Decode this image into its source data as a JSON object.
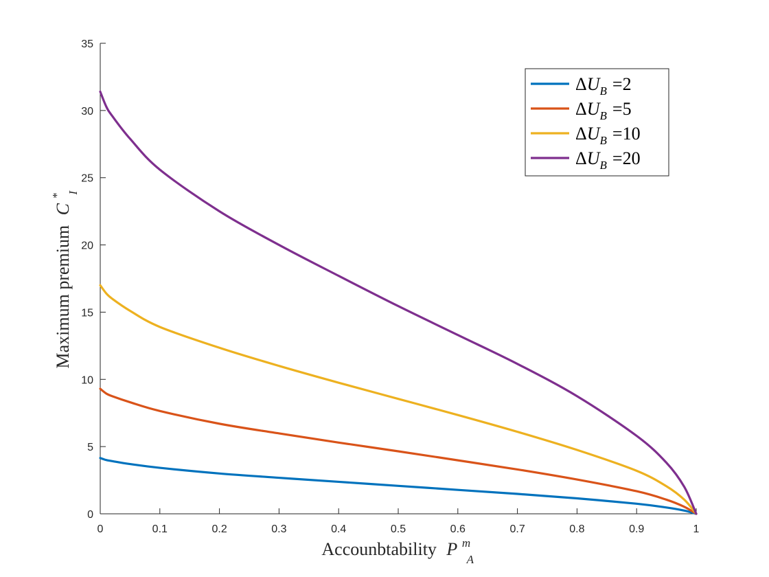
{
  "chart_data": {
    "type": "line",
    "xlabel_prefix": "Accounbtability",
    "xlabel_var": "P",
    "xlabel_sup": "m",
    "xlabel_sub": "A",
    "ylabel_prefix": "Maximum premium",
    "ylabel_var": "C",
    "ylabel_sup": "*",
    "ylabel_sub": "I",
    "xlim": [
      0,
      1
    ],
    "ylim": [
      0,
      35
    ],
    "xticks": [
      0,
      0.1,
      0.2,
      0.3,
      0.4,
      0.5,
      0.6,
      0.7,
      0.8,
      0.9,
      1
    ],
    "xtick_labels": [
      "0",
      "0.1",
      "0.2",
      "0.3",
      "0.4",
      "0.5",
      "0.6",
      "0.7",
      "0.8",
      "0.9",
      "1"
    ],
    "yticks": [
      0,
      5,
      10,
      15,
      20,
      25,
      30,
      35
    ],
    "ytick_labels": [
      "0",
      "5",
      "10",
      "15",
      "20",
      "25",
      "30",
      "35"
    ],
    "grid": false,
    "legend_position": "top-right",
    "x": [
      0,
      0.01,
      0.02,
      0.05,
      0.1,
      0.2,
      0.3,
      0.4,
      0.5,
      0.6,
      0.7,
      0.8,
      0.9,
      0.95,
      0.98,
      1.0
    ],
    "series": [
      {
        "name": "ΔU_B =2",
        "legend_delta": "Δ",
        "legend_var": "U",
        "legend_sub": "B",
        "legend_value": "=2",
        "color": "#0072BD",
        "values": [
          4.15,
          4.0,
          3.92,
          3.7,
          3.42,
          3.0,
          2.68,
          2.38,
          2.08,
          1.78,
          1.48,
          1.15,
          0.75,
          0.47,
          0.24,
          0
        ]
      },
      {
        "name": "ΔU_B =5",
        "legend_delta": "Δ",
        "legend_var": "U",
        "legend_sub": "B",
        "legend_value": "=5",
        "color": "#D95319",
        "values": [
          9.3,
          8.95,
          8.75,
          8.3,
          7.65,
          6.7,
          5.98,
          5.3,
          4.65,
          3.98,
          3.3,
          2.55,
          1.68,
          1.05,
          0.52,
          0
        ]
      },
      {
        "name": "ΔU_B =10",
        "legend_delta": "Δ",
        "legend_var": "U",
        "legend_sub": "B",
        "legend_value": "=10",
        "color": "#EDB120",
        "values": [
          17.0,
          16.4,
          16.0,
          15.1,
          13.9,
          12.35,
          11.0,
          9.75,
          8.55,
          7.35,
          6.1,
          4.75,
          3.2,
          2.05,
          1.05,
          0
        ]
      },
      {
        "name": "ΔU_B =20",
        "legend_delta": "Δ",
        "legend_var": "U",
        "legend_sub": "B",
        "legend_value": "=20",
        "color": "#7E2F8E",
        "values": [
          31.4,
          30.3,
          29.6,
          27.9,
          25.6,
          22.5,
          20.0,
          17.7,
          15.45,
          13.3,
          11.15,
          8.75,
          5.8,
          3.8,
          2.0,
          0
        ]
      }
    ]
  }
}
